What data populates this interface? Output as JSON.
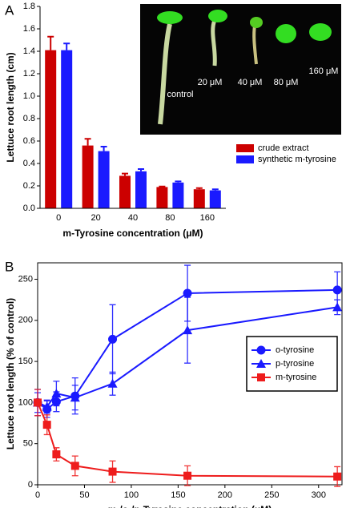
{
  "chart_data": [
    {
      "type": "bar",
      "panel": "A",
      "ylabel": "Lettuce root length (cm)",
      "xlabel": "m-Tyrosine concentration (μM)",
      "categories": [
        "0",
        "20",
        "40",
        "80",
        "160"
      ],
      "series": [
        {
          "name": "crude extract",
          "color": "#cc0000",
          "values": [
            1.41,
            0.56,
            0.29,
            0.19,
            0.17
          ],
          "errors": [
            0.12,
            0.06,
            0.02,
            0.005,
            0.01
          ]
        },
        {
          "name": "synthetic m-tyrosine",
          "color": "#1a1aff",
          "values": [
            1.41,
            0.51,
            0.33,
            0.23,
            0.16
          ],
          "errors": [
            0.06,
            0.04,
            0.02,
            0.01,
            0.01
          ]
        }
      ],
      "ylim": [
        0,
        1.8
      ],
      "yticks": [
        {
          "value": 0,
          "label": "0.0"
        },
        {
          "value": 0.2,
          "label": "0.2"
        },
        {
          "value": 0.4,
          "label": "0.4"
        },
        {
          "value": 0.6,
          "label": "0.6"
        },
        {
          "value": 0.8,
          "label": "0.8"
        },
        {
          "value": 1.0,
          "label": "1.0"
        },
        {
          "value": 1.2,
          "label": "1.2"
        },
        {
          "value": 1.4,
          "label": "1.4"
        },
        {
          "value": 1.6,
          "label": "1.6"
        },
        {
          "value": 1.8,
          "label": "1.8"
        }
      ],
      "legend": "right",
      "inset_labels": [
        "control",
        "20 μM",
        "40 μM",
        "80 μM",
        "160 μM"
      ]
    },
    {
      "type": "line",
      "panel": "B",
      "ylabel": "Lettuce root length (% of control)",
      "xlabel": "m-/o-/p-Tyrosine concentration (μM)",
      "x": [
        0,
        10,
        20,
        40,
        80,
        160,
        320
      ],
      "series": [
        {
          "name": "o-tyrosine",
          "color": "#1a1aff",
          "marker": "circle",
          "values": [
            100,
            92,
            101,
            108,
            177,
            233,
            237
          ],
          "errors": [
            16,
            10,
            12,
            22,
            42,
            34,
            22
          ]
        },
        {
          "name": "p-tyrosine",
          "color": "#1a1aff",
          "marker": "triangle",
          "values": [
            100,
            95,
            111,
            106,
            123,
            188,
            216
          ],
          "errors": [
            12,
            8,
            15,
            15,
            14,
            40,
            9
          ]
        },
        {
          "name": "m-tyrosine",
          "color": "#ee1c1c",
          "marker": "square",
          "values": [
            100,
            73,
            37,
            23,
            16,
            11,
            10
          ],
          "errors": [
            16,
            12,
            8,
            12,
            13,
            12,
            12
          ]
        }
      ],
      "xlim": [
        0,
        325
      ],
      "xticks": [
        0,
        50,
        100,
        150,
        200,
        250,
        300
      ],
      "ylim": [
        0,
        270
      ],
      "yticks": [
        0,
        50,
        100,
        150,
        200,
        250
      ],
      "legend": "right"
    }
  ]
}
